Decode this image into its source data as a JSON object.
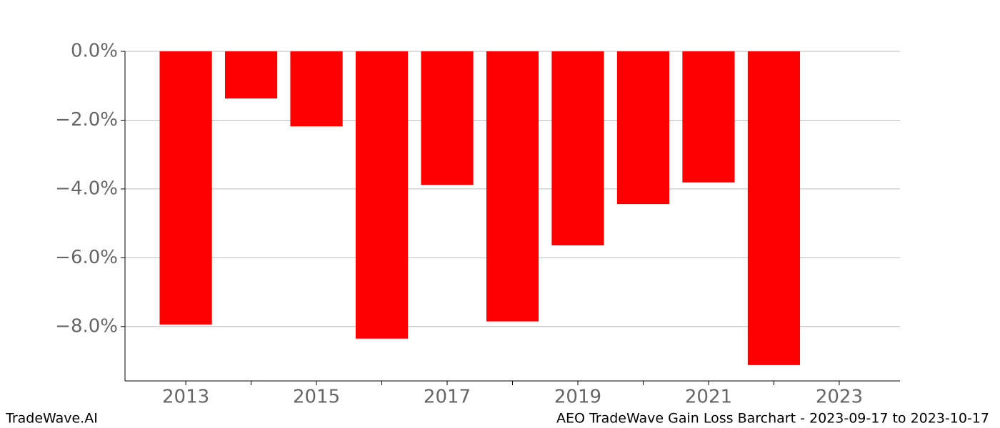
{
  "chart_data": {
    "type": "bar",
    "title": "AEO TradeWave Gain Loss Barchart - 2023-09-17 to 2023-10-17",
    "watermark": "TradeWave.AI",
    "x": [
      2013,
      2014,
      2015,
      2016,
      2017,
      2018,
      2019,
      2020,
      2021,
      2022
    ],
    "values": [
      -7.94,
      -1.37,
      -2.18,
      -8.35,
      -3.88,
      -7.85,
      -5.64,
      -4.44,
      -3.81,
      -9.12
    ],
    "color": "#ff0000",
    "xlim": [
      2012.07,
      2023.93
    ],
    "xticks": [
      2013,
      2015,
      2017,
      2019,
      2021,
      2023
    ],
    "xticks_minor": [
      2014,
      2016,
      2018,
      2020,
      2022
    ],
    "ylim": [
      -9.58,
      0
    ],
    "yticks": [
      {
        "value": 0,
        "label": "0.0%"
      },
      {
        "value": -2,
        "label": "−2.0%"
      },
      {
        "value": -4,
        "label": "−4.0%"
      },
      {
        "value": -6,
        "label": "−6.0%"
      },
      {
        "value": -8,
        "label": "−8.0%"
      }
    ],
    "grid": true
  }
}
